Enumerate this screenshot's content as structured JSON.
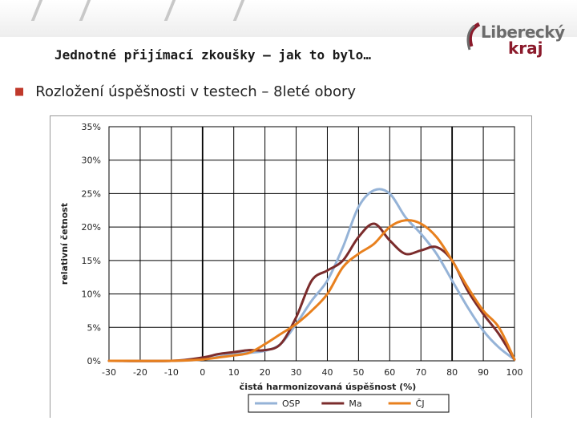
{
  "header": {
    "title": "Jednotné přijímací zkoušky – jak to bylo…",
    "logo_top": "Liberecký",
    "logo_bottom": "kraj"
  },
  "bullet": {
    "text": "Rozložení úspěšnosti v testech – 8leté obory"
  },
  "colors": {
    "OSP": "#95b3d7",
    "Ma": "#7b2c2c",
    "CJ": "#e8801e",
    "accent": "#8b1a2b"
  },
  "chart_data": {
    "type": "line",
    "title": "",
    "xlabel": "čistá harmonizovaná úspěšnost (%)",
    "ylabel": "relativní četnost",
    "xlim": [
      -30,
      100
    ],
    "ylim": [
      0,
      0.35
    ],
    "x_ticks": [
      "-30",
      "-20",
      "-10",
      "0",
      "10",
      "20",
      "30",
      "40",
      "50",
      "60",
      "70",
      "80",
      "90",
      "100"
    ],
    "y_ticks": [
      "0%",
      "5%",
      "10%",
      "15%",
      "20%",
      "25%",
      "30%",
      "35%"
    ],
    "grid": true,
    "legend": "bottom",
    "series": [
      {
        "name": "OSP",
        "x": [
          -30,
          -10,
          0,
          5,
          10,
          15,
          20,
          25,
          30,
          35,
          40,
          45,
          50,
          55,
          60,
          65,
          70,
          75,
          80,
          85,
          90,
          95,
          100
        ],
        "values": [
          0,
          0,
          0.002,
          0.006,
          0.01,
          0.012,
          0.015,
          0.025,
          0.055,
          0.09,
          0.12,
          0.17,
          0.23,
          0.255,
          0.25,
          0.215,
          0.19,
          0.16,
          0.12,
          0.08,
          0.045,
          0.02,
          0.002
        ]
      },
      {
        "name": "Ma",
        "x": [
          -30,
          -10,
          0,
          5,
          10,
          15,
          20,
          25,
          30,
          35,
          40,
          45,
          50,
          55,
          60,
          65,
          70,
          75,
          80,
          85,
          90,
          95,
          100
        ],
        "values": [
          0,
          0,
          0.005,
          0.01,
          0.013,
          0.016,
          0.016,
          0.025,
          0.065,
          0.12,
          0.135,
          0.15,
          0.185,
          0.205,
          0.18,
          0.16,
          0.165,
          0.17,
          0.15,
          0.105,
          0.07,
          0.04,
          0.002
        ]
      },
      {
        "name": "ČJ",
        "x": [
          -30,
          -10,
          0,
          5,
          10,
          15,
          20,
          25,
          30,
          35,
          40,
          45,
          50,
          55,
          60,
          65,
          70,
          75,
          80,
          85,
          90,
          95,
          100
        ],
        "values": [
          0,
          0,
          0.002,
          0.005,
          0.008,
          0.012,
          0.025,
          0.04,
          0.055,
          0.075,
          0.1,
          0.14,
          0.16,
          0.175,
          0.2,
          0.21,
          0.205,
          0.185,
          0.15,
          0.11,
          0.075,
          0.05,
          0.002
        ]
      }
    ]
  }
}
